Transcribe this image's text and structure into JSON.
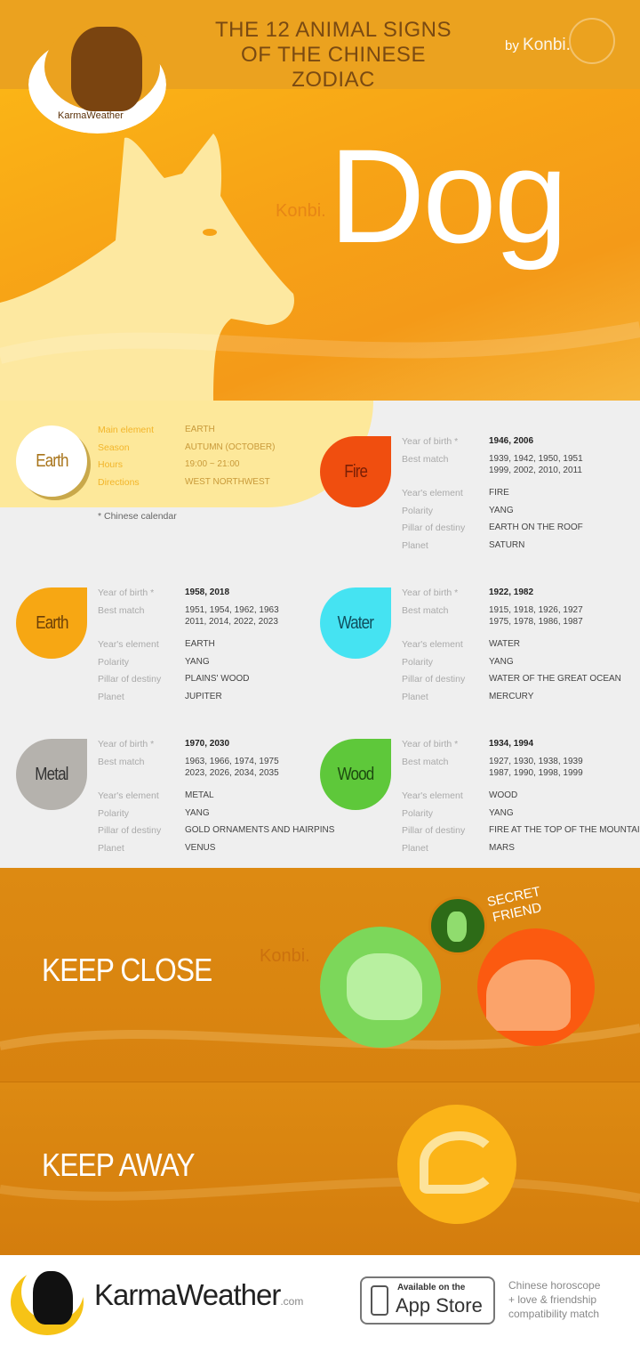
{
  "header": {
    "title_line1": "THE 12 ANIMAL SIGNS",
    "title_line2": "OF THE CHINESE ZODIAC",
    "by": "by",
    "brand": "Konbi.",
    "logo_text": "KarmaWeather"
  },
  "hero": {
    "animal": "Dog",
    "watermark": "Konbi."
  },
  "main_element": {
    "badge": "Earth",
    "rows": [
      {
        "label": "Main element",
        "value": "EARTH"
      },
      {
        "label": "Season",
        "value": "AUTUMN (OCTOBER)"
      },
      {
        "label": "Hours",
        "value": "19:00 ~ 21:00"
      },
      {
        "label": "Directions",
        "value": "WEST NORTHWEST"
      }
    ],
    "footnote": "* Chinese calendar"
  },
  "labels": {
    "year_of_birth": "Year of birth *",
    "best_match": "Best match",
    "years_element": "Year's element",
    "polarity": "Polarity",
    "pillar": "Pillar of destiny",
    "planet": "Planet"
  },
  "elements": [
    {
      "name": "Fire",
      "color": "#f04e0f",
      "text_color": "#7a1f05",
      "years": "1946, 2006",
      "match1": "1939, 1942, 1950, 1951",
      "match2": "1999, 2002, 2010, 2011",
      "element": "FIRE",
      "polarity": "YANG",
      "pillar": "EARTH ON THE ROOF",
      "planet": "SATURN"
    },
    {
      "name": "Earth",
      "color": "#f7a713",
      "text_color": "#6b3f08",
      "years": "1958, 2018",
      "match1": "1951, 1954, 1962, 1963",
      "match2": "2011, 2014, 2022, 2023",
      "element": "EARTH",
      "polarity": "YANG",
      "pillar": "PLAINS' WOOD",
      "planet": "JUPITER"
    },
    {
      "name": "Water",
      "color": "#45e3f2",
      "text_color": "#0f4d5c",
      "years": "1922, 1982",
      "match1": "1915, 1918, 1926, 1927",
      "match2": "1975, 1978, 1986, 1987",
      "element": "WATER",
      "polarity": "YANG",
      "pillar": "WATER OF THE GREAT OCEAN",
      "planet": "MERCURY"
    },
    {
      "name": "Metal",
      "color": "#b5b2ad",
      "text_color": "#333333",
      "years": "1970, 2030",
      "match1": "1963, 1966, 1974, 1975",
      "match2": "2023, 2026, 2034, 2035",
      "element": "METAL",
      "polarity": "YANG",
      "pillar": "GOLD ORNAMENTS AND HAIRPINS",
      "planet": "VENUS"
    },
    {
      "name": "Wood",
      "color": "#5ec83a",
      "text_color": "#1d4a10",
      "years": "1934, 1994",
      "match1": "1927, 1930, 1938, 1939",
      "match2": "1987, 1990, 1998, 1999",
      "element": "WOOD",
      "polarity": "YANG",
      "pillar": "FIRE AT THE TOP OF THE MOUNTAIN",
      "planet": "MARS"
    }
  ],
  "keep_close": {
    "title": "KEEP CLOSE",
    "secret_friend": "SECRET FRIEND",
    "watermark": "Konbi.",
    "animals": [
      "tiger-icon",
      "horse-icon",
      "rabbit-icon"
    ]
  },
  "keep_away": {
    "title": "KEEP AWAY",
    "animals": [
      "dragon-icon"
    ]
  },
  "footer": {
    "brand": "KarmaWeather",
    "brand_suffix": ".com",
    "appstore_small": "Available on the",
    "appstore_big": "App Store",
    "tagline1": "Chinese horoscope",
    "tagline2": "+ love & friendship",
    "tagline3": "compatibility match"
  }
}
